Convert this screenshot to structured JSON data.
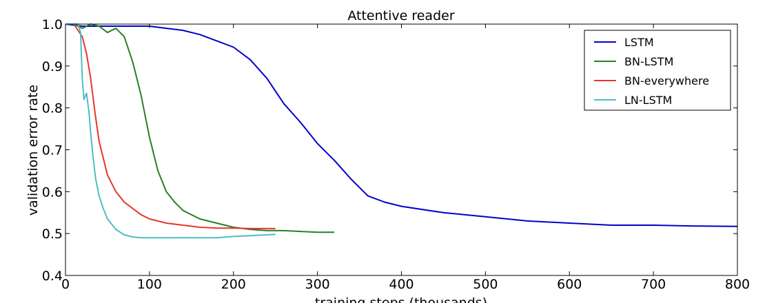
{
  "chart_data": {
    "type": "line",
    "title": "Attentive reader",
    "xlabel": "training steps (thousands)",
    "ylabel": "validation error rate",
    "xlim": [
      0,
      800
    ],
    "ylim": [
      0.4,
      1.0
    ],
    "xticks": [
      "0",
      "100",
      "200",
      "300",
      "400",
      "500",
      "600",
      "700",
      "800"
    ],
    "yticks": [
      "0.4",
      "0.5",
      "0.6",
      "0.7",
      "0.8",
      "0.9",
      "1.0"
    ],
    "grid": false,
    "legend_position": "top-right",
    "series": [
      {
        "name": "LSTM",
        "color": "#0000cc",
        "x": [
          0,
          20,
          40,
          60,
          80,
          100,
          120,
          140,
          160,
          180,
          200,
          220,
          240,
          260,
          280,
          300,
          320,
          340,
          360,
          380,
          400,
          450,
          500,
          550,
          600,
          650,
          700,
          750,
          800
        ],
        "y": [
          1.0,
          0.995,
          0.995,
          0.995,
          0.995,
          0.995,
          0.99,
          0.985,
          0.975,
          0.96,
          0.945,
          0.915,
          0.87,
          0.81,
          0.765,
          0.715,
          0.675,
          0.63,
          0.59,
          0.575,
          0.565,
          0.55,
          0.54,
          0.53,
          0.525,
          0.52,
          0.52,
          0.518,
          0.517
        ]
      },
      {
        "name": "BN-LSTM",
        "color": "#267f26",
        "x": [
          0,
          10,
          20,
          30,
          40,
          50,
          60,
          70,
          80,
          90,
          100,
          110,
          120,
          130,
          140,
          160,
          180,
          200,
          220,
          240,
          260,
          280,
          300,
          320
        ],
        "y": [
          1.0,
          1.0,
          0.99,
          1.0,
          0.995,
          0.98,
          0.99,
          0.97,
          0.91,
          0.83,
          0.73,
          0.65,
          0.6,
          0.575,
          0.555,
          0.535,
          0.525,
          0.515,
          0.51,
          0.507,
          0.507,
          0.505,
          0.503,
          0.503
        ]
      },
      {
        "name": "BN-everywhere",
        "color": "#e8342c",
        "x": [
          0,
          10,
          20,
          25,
          30,
          35,
          40,
          50,
          60,
          70,
          80,
          90,
          100,
          120,
          140,
          160,
          180,
          200,
          220,
          250
        ],
        "y": [
          1.0,
          1.0,
          0.97,
          0.93,
          0.87,
          0.79,
          0.72,
          0.64,
          0.6,
          0.575,
          0.56,
          0.545,
          0.535,
          0.525,
          0.52,
          0.515,
          0.513,
          0.513,
          0.512,
          0.512
        ]
      },
      {
        "name": "LN-LSTM",
        "color": "#4dbec2",
        "x": [
          0,
          15,
          18,
          20,
          22,
          25,
          28,
          30,
          33,
          36,
          40,
          45,
          50,
          60,
          70,
          80,
          90,
          100,
          120,
          140,
          160,
          180,
          200,
          220,
          250
        ],
        "y": [
          1.0,
          1.0,
          0.98,
          0.87,
          0.82,
          0.835,
          0.79,
          0.74,
          0.68,
          0.63,
          0.59,
          0.56,
          0.535,
          0.51,
          0.497,
          0.492,
          0.49,
          0.49,
          0.49,
          0.49,
          0.49,
          0.49,
          0.493,
          0.495,
          0.498
        ]
      }
    ]
  }
}
